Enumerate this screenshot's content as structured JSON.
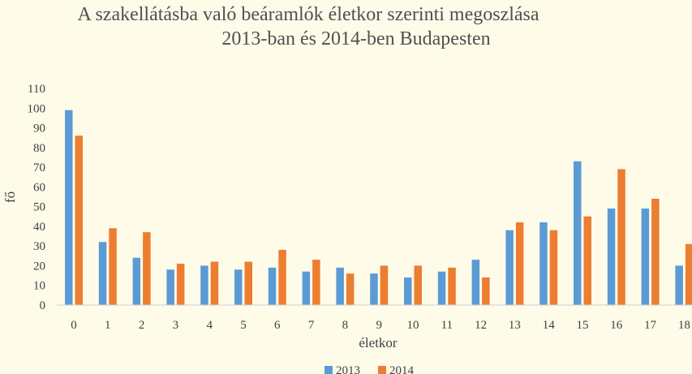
{
  "chart_data": {
    "type": "bar",
    "title": "A szakellátásba való beáramlók életkor szerinti megoszlása",
    "subtitle": "2013-ban és 2014-ben Budapesten",
    "xlabel": "életkor",
    "ylabel": "fő",
    "ylim": [
      0,
      110
    ],
    "ytick_step": 10,
    "categories": [
      "0",
      "1",
      "2",
      "3",
      "4",
      "5",
      "6",
      "7",
      "8",
      "9",
      "10",
      "11",
      "12",
      "13",
      "14",
      "15",
      "16",
      "17",
      "18"
    ],
    "series": [
      {
        "name": "2013",
        "color": "#5b9bd5",
        "values": [
          99,
          32,
          24,
          18,
          20,
          18,
          19,
          17,
          19,
          16,
          14,
          17,
          23,
          38,
          42,
          73,
          49,
          49,
          20
        ]
      },
      {
        "name": "2014",
        "color": "#ed7d31",
        "values": [
          86,
          39,
          37,
          21,
          22,
          22,
          28,
          23,
          16,
          20,
          20,
          19,
          14,
          42,
          38,
          45,
          69,
          54,
          31
        ]
      }
    ],
    "legend_position": "bottom",
    "grid": false
  }
}
